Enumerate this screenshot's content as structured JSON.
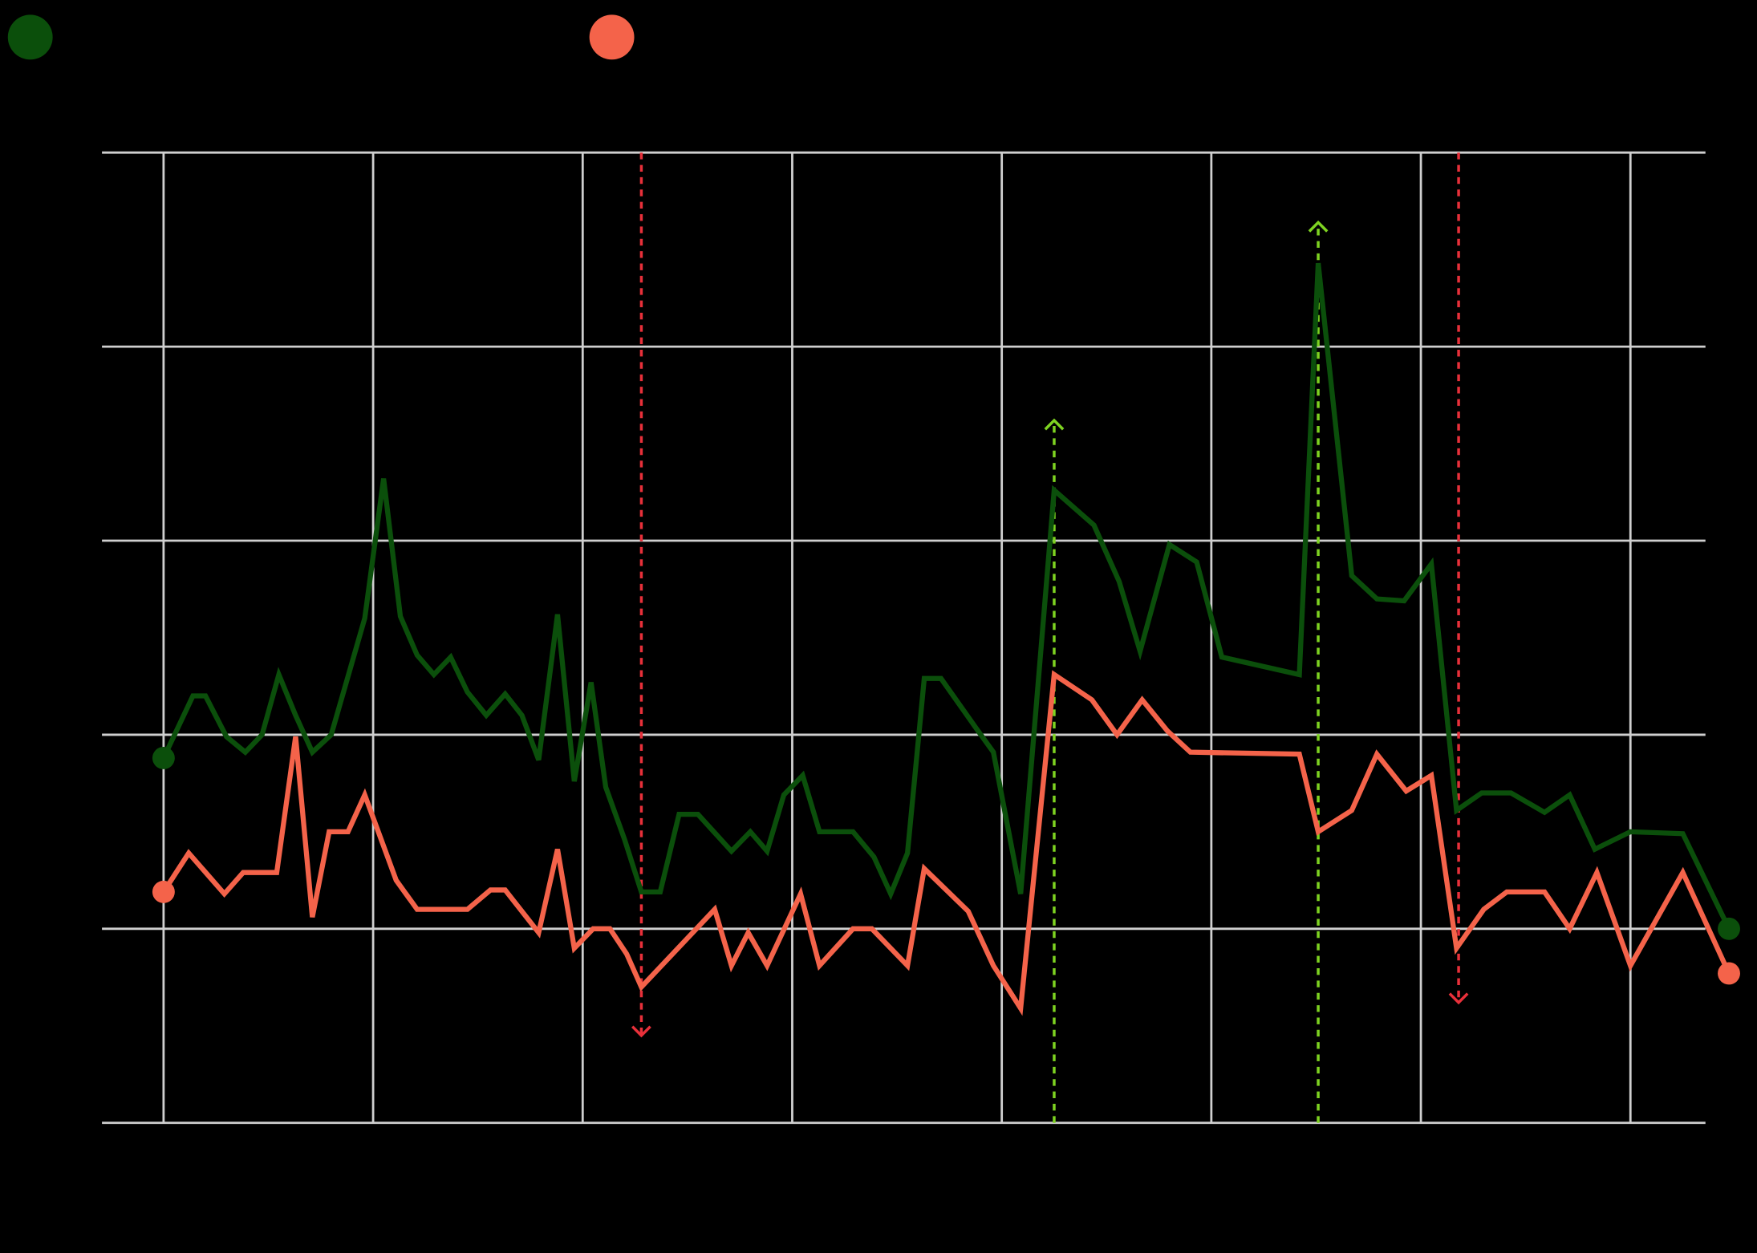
{
  "chart_data": {
    "type": "line",
    "xlim": [
      -0.294,
      7.358
    ],
    "xticks": [
      0,
      1,
      2,
      3,
      4,
      5,
      6,
      7
    ],
    "ylim": [
      0,
      5
    ],
    "yticks": [
      0,
      1,
      2,
      3,
      4,
      5
    ],
    "grid": true,
    "background": "#000000",
    "grid_color": "#cfcfcf",
    "tick_label_color": "#000000",
    "series": [
      {
        "color": "#0b4f0b",
        "x": [
          0.0,
          0.14,
          0.2,
          0.3,
          0.39,
          0.47,
          0.55,
          0.63,
          0.71,
          0.8,
          0.96,
          1.05,
          1.13,
          1.21,
          1.29,
          1.37,
          1.45,
          1.54,
          1.63,
          1.71,
          1.79,
          1.88,
          1.96,
          2.04,
          2.11,
          2.2,
          2.28,
          2.37,
          2.46,
          2.55,
          2.71,
          2.8,
          2.88,
          2.96,
          3.05,
          3.13,
          3.29,
          3.39,
          3.47,
          3.55,
          3.63,
          3.71,
          3.88,
          3.96,
          4.09,
          4.25,
          4.44,
          4.56,
          4.66,
          4.8,
          4.93,
          5.05,
          5.42,
          5.51,
          5.67,
          5.79,
          5.92,
          6.05,
          6.17,
          6.29,
          6.43,
          6.59,
          6.71,
          6.83,
          7.0,
          7.25,
          7.47
        ],
        "values": [
          1.88,
          2.2,
          2.2,
          1.99,
          1.91,
          2.0,
          2.31,
          2.1,
          1.91,
          2.0,
          2.6,
          3.32,
          2.61,
          2.41,
          2.31,
          2.4,
          2.22,
          2.1,
          2.21,
          2.1,
          1.87,
          2.62,
          1.76,
          2.27,
          1.73,
          1.46,
          1.19,
          1.19,
          1.59,
          1.59,
          1.4,
          1.5,
          1.4,
          1.69,
          1.79,
          1.5,
          1.5,
          1.37,
          1.18,
          1.39,
          2.29,
          2.29,
          2.03,
          1.91,
          1.18,
          3.26,
          3.08,
          2.79,
          2.43,
          2.98,
          2.89,
          2.4,
          2.31,
          4.43,
          2.82,
          2.7,
          2.69,
          2.88,
          1.61,
          1.7,
          1.7,
          1.6,
          1.69,
          1.41,
          1.5,
          1.49,
          1.0
        ]
      },
      {
        "color": "#f4634a",
        "x": [
          0.0,
          0.12,
          0.29,
          0.38,
          0.54,
          0.63,
          0.71,
          0.79,
          0.88,
          0.96,
          1.11,
          1.21,
          1.45,
          1.56,
          1.63,
          1.79,
          1.88,
          1.96,
          2.05,
          2.13,
          2.21,
          2.28,
          2.63,
          2.71,
          2.79,
          2.88,
          3.04,
          3.13,
          3.29,
          3.38,
          3.55,
          3.63,
          3.84,
          3.96,
          4.09,
          4.25,
          4.43,
          4.55,
          4.67,
          4.79,
          4.9,
          5.42,
          5.51,
          5.67,
          5.79,
          5.93,
          6.05,
          6.17,
          6.3,
          6.41,
          6.59,
          6.71,
          6.84,
          7.0,
          7.25,
          7.47
        ],
        "values": [
          1.19,
          1.39,
          1.18,
          1.29,
          1.29,
          1.99,
          1.06,
          1.5,
          1.5,
          1.69,
          1.25,
          1.1,
          1.1,
          1.2,
          1.2,
          0.98,
          1.41,
          0.9,
          1.0,
          1.0,
          0.87,
          0.7,
          1.1,
          0.81,
          0.98,
          0.81,
          1.18,
          0.81,
          1.0,
          1.0,
          0.81,
          1.31,
          1.09,
          0.81,
          0.59,
          2.31,
          2.18,
          2.0,
          2.18,
          2.02,
          1.91,
          1.9,
          1.5,
          1.61,
          1.9,
          1.71,
          1.79,
          0.9,
          1.1,
          1.19,
          1.19,
          1.0,
          1.29,
          0.81,
          1.29,
          0.77
        ]
      }
    ],
    "events": [
      {
        "x": 2.28,
        "y_end": 0.45,
        "color": "#e8303a"
      },
      {
        "x": 4.25,
        "y_end": 3.62,
        "color": "#7ed321"
      },
      {
        "x": 5.51,
        "y_end": 4.64,
        "color": "#7ed321"
      },
      {
        "x": 6.18,
        "y_end": 0.62,
        "color": "#e8303a"
      }
    ]
  }
}
